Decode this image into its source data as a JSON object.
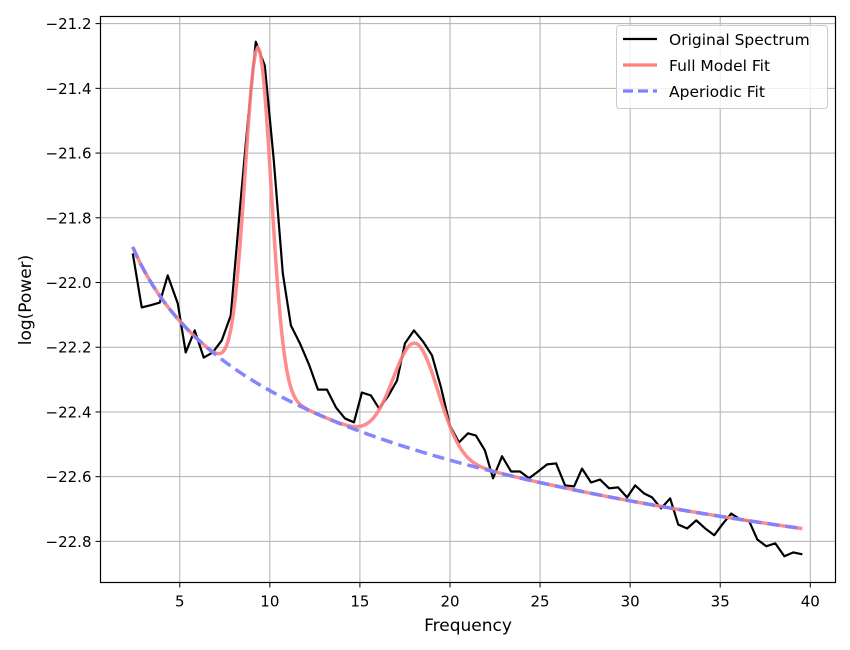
{
  "chart_data": {
    "type": "line",
    "title": "",
    "xlabel": "Frequency",
    "ylabel": "log(Power)",
    "xlim": [
      0.6,
      41.4
    ],
    "ylim": [
      -22.927,
      -21.178
    ],
    "grid": true,
    "legend_position": "upper right",
    "x_ticks": [
      5,
      10,
      15,
      20,
      25,
      30,
      35,
      40
    ],
    "x_tick_labels": [
      "5",
      "10",
      "15",
      "20",
      "25",
      "30",
      "35",
      "40"
    ],
    "y_ticks": [
      -21.2,
      -21.4,
      -21.6,
      -21.8,
      -22.0,
      -22.2,
      -22.4,
      -22.6,
      -22.8
    ],
    "y_tick_labels": [
      "−21.2",
      "−21.4",
      "−21.6",
      "−21.8",
      "−22.0",
      "−22.2",
      "−22.4",
      "−22.6",
      "−22.8"
    ],
    "legend": [
      "Original Spectrum",
      "Full Model Fit",
      "Aperiodic Fit"
    ],
    "series": [
      {
        "name": "Original Spectrum",
        "color": "#000000",
        "style": "solid",
        "x": [
          2.39,
          2.89,
          3.39,
          3.89,
          4.33,
          4.89,
          5.33,
          5.83,
          6.33,
          6.83,
          7.33,
          7.83,
          8.33,
          8.78,
          9.22,
          9.72,
          10.22,
          10.72,
          11.17,
          11.67,
          12.17,
          12.67,
          13.17,
          13.67,
          14.17,
          14.67,
          15.11,
          15.61,
          16.06,
          16.56,
          17.06,
          17.5,
          18.0,
          18.5,
          19.0,
          19.5,
          20.0,
          20.5,
          21.0,
          21.44,
          21.94,
          22.39,
          22.89,
          23.39,
          23.89,
          24.39,
          24.89,
          25.39,
          25.89,
          26.39,
          26.89,
          27.33,
          27.83,
          28.33,
          28.83,
          29.33,
          29.83,
          30.28,
          30.78,
          31.22,
          31.72,
          32.22,
          32.67,
          33.17,
          33.67,
          34.17,
          34.67,
          35.11,
          35.61,
          36.11,
          36.61,
          37.06,
          37.56,
          38.06,
          38.56,
          39.06,
          39.56
        ],
        "values": [
          -21.91,
          -22.077,
          -22.07,
          -22.062,
          -21.978,
          -22.065,
          -22.216,
          -22.148,
          -22.232,
          -22.216,
          -22.179,
          -22.102,
          -21.778,
          -21.5,
          -21.256,
          -21.33,
          -21.623,
          -21.972,
          -22.133,
          -22.188,
          -22.253,
          -22.331,
          -22.331,
          -22.386,
          -22.42,
          -22.432,
          -22.34,
          -22.349,
          -22.389,
          -22.352,
          -22.303,
          -22.188,
          -22.148,
          -22.182,
          -22.225,
          -22.324,
          -22.442,
          -22.494,
          -22.466,
          -22.473,
          -22.519,
          -22.605,
          -22.537,
          -22.584,
          -22.584,
          -22.605,
          -22.584,
          -22.562,
          -22.559,
          -22.627,
          -22.63,
          -22.575,
          -22.618,
          -22.609,
          -22.636,
          -22.633,
          -22.664,
          -22.627,
          -22.652,
          -22.664,
          -22.698,
          -22.667,
          -22.748,
          -22.76,
          -22.735,
          -22.76,
          -22.781,
          -22.748,
          -22.714,
          -22.732,
          -22.738,
          -22.794,
          -22.815,
          -22.806,
          -22.846,
          -22.834,
          -22.84
        ]
      },
      {
        "name": "Full Model Fit",
        "color": "#ff7f7f",
        "style": "solid",
        "model": {
          "offset": -21.62,
          "exponent": 0.714,
          "peaks": [
            {
              "center": 9.35,
              "height": 1.04,
              "sd": 0.72
            },
            {
              "center": 18.1,
              "height": 0.33,
              "sd": 1.25
            }
          ]
        },
        "x_range": [
          2.39,
          39.56
        ]
      },
      {
        "name": "Aperiodic Fit",
        "color": "#7f7fff",
        "style": "dashed",
        "model": {
          "offset": -21.62,
          "exponent": 0.714
        },
        "x_range": [
          2.39,
          39.56
        ]
      }
    ]
  }
}
